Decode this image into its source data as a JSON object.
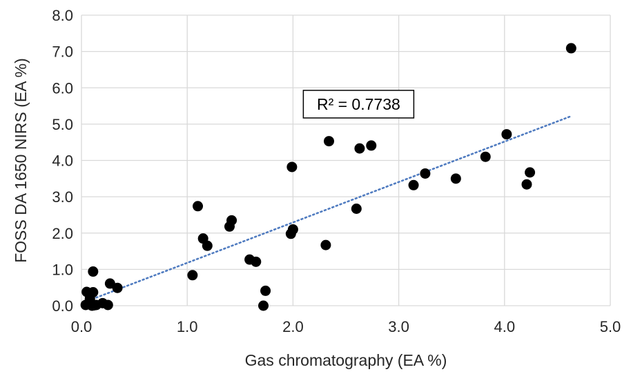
{
  "chart_data": {
    "type": "scatter",
    "xlabel": "Gas chromatography  (EA %)",
    "ylabel": "FOSS DA 1650 NIRS (EA %)",
    "xlim": [
      0.0,
      5.0
    ],
    "ylim": [
      0.0,
      8.0
    ],
    "x_ticks": [
      "0.0",
      "1.0",
      "2.0",
      "3.0",
      "4.0",
      "5.0"
    ],
    "y_ticks": [
      "0.0",
      "1.0",
      "2.0",
      "3.0",
      "4.0",
      "5.0",
      "6.0",
      "7.0",
      "8.0"
    ],
    "grid": "vertical and horizontal major gridlines",
    "series": [
      {
        "marker_color": "#000000",
        "x": [
          0.04,
          0.06,
          0.08,
          0.1,
          0.12,
          0.14,
          0.2,
          0.25,
          0.05,
          0.11,
          0.11,
          0.08,
          0.27,
          0.34,
          1.05,
          1.1,
          1.15,
          1.19,
          1.4,
          1.42,
          1.59,
          1.65,
          1.72,
          1.74,
          1.98,
          2.0,
          1.99,
          2.31,
          2.34,
          2.6,
          2.63,
          2.74,
          3.14,
          3.25,
          3.54,
          3.82,
          4.02,
          4.21,
          4.24,
          4.63
        ],
        "y": [
          0.02,
          0.05,
          0.15,
          0.0,
          0.01,
          0.02,
          0.07,
          0.02,
          0.38,
          0.37,
          0.94,
          0.2,
          0.61,
          0.49,
          0.84,
          2.74,
          1.85,
          1.65,
          2.18,
          2.35,
          1.27,
          1.21,
          0.0,
          0.41,
          1.98,
          2.1,
          3.82,
          1.67,
          4.53,
          2.67,
          4.33,
          4.41,
          3.32,
          3.64,
          3.5,
          4.1,
          4.72,
          3.34,
          3.67,
          7.09
        ]
      }
    ],
    "trendline": {
      "type": "linear",
      "style": "dotted",
      "color": "#4f7bc0",
      "x_range": [
        0.03,
        4.63
      ],
      "y_range": [
        0.1,
        5.22
      ]
    },
    "annotations": [
      {
        "text": "R² = 0.7738",
        "x": 2.62,
        "y": 5.55
      }
    ]
  }
}
